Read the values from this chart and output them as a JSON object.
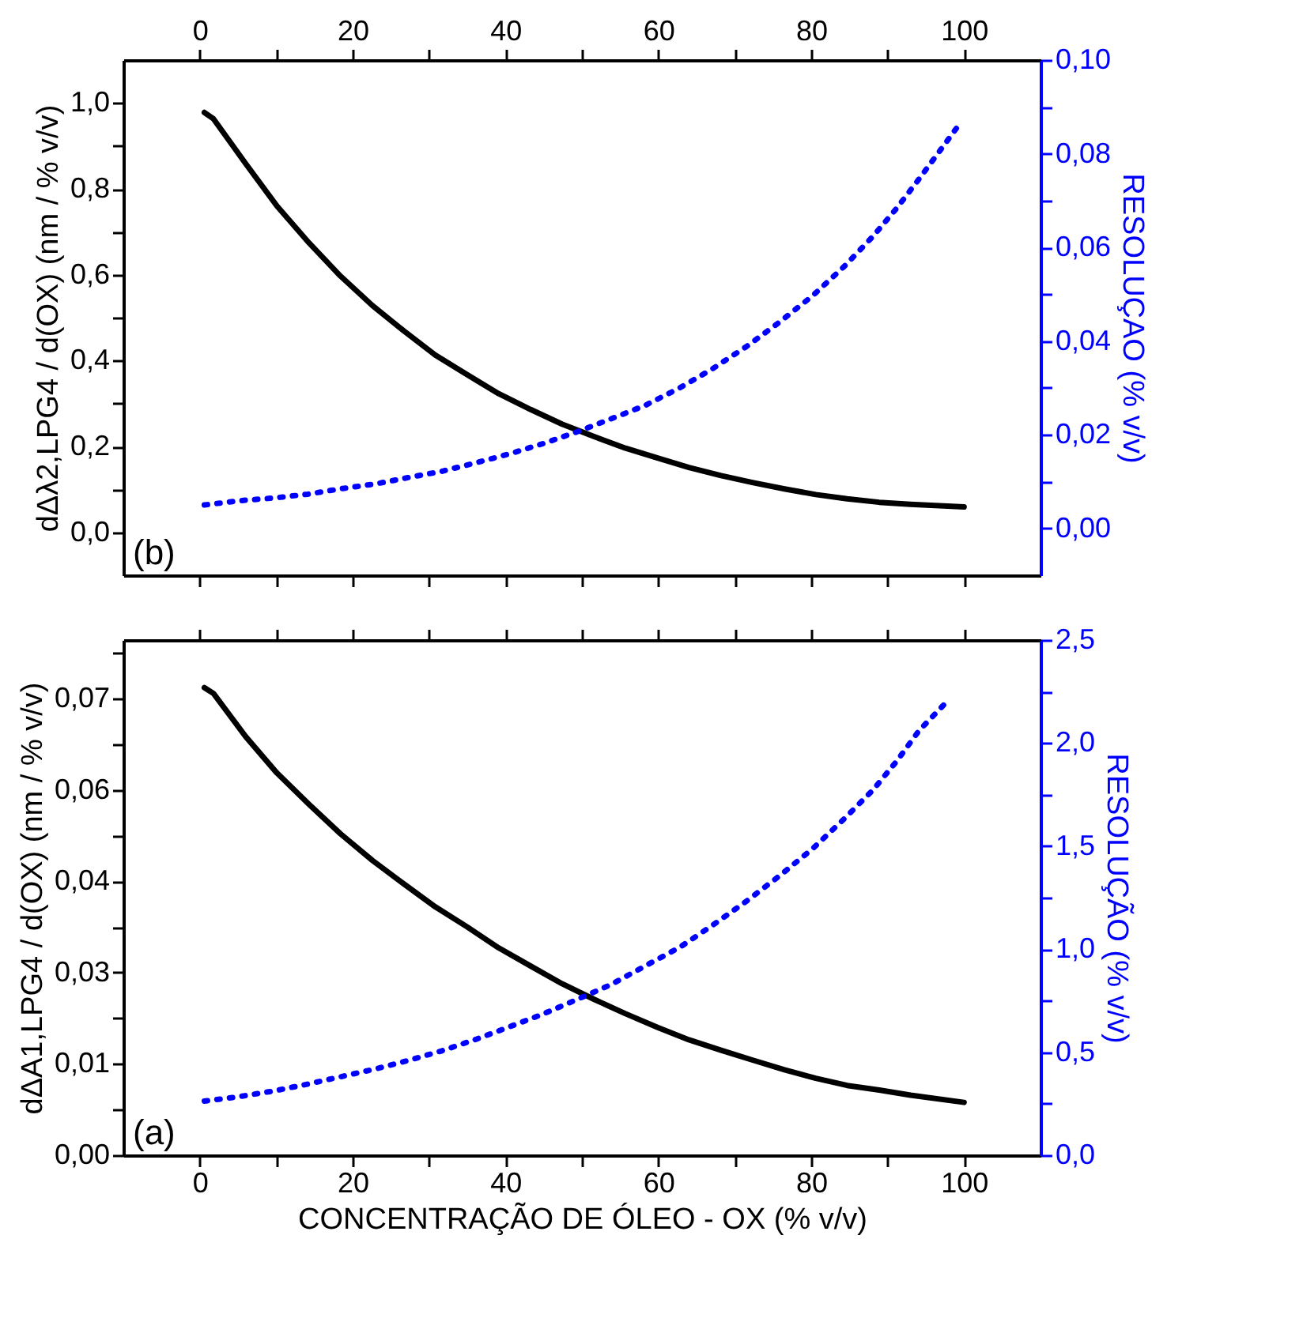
{
  "chart_data": [
    {
      "type": "line",
      "xlim": [
        -10,
        110
      ],
      "xticks": [
        0,
        {
          "value": 10,
          "label": null
        },
        20,
        {
          "value": 30,
          "label": null
        },
        40,
        {
          "value": 50,
          "label": null
        },
        60,
        {
          "value": 70,
          "label": null
        },
        80,
        {
          "value": 90,
          "label": null
        },
        100
      ],
      "tick_labels": "y",
      "x2lim": [
        -10,
        110
      ],
      "x2ticks": [
        0,
        {
          "value": 10,
          "label": null
        },
        20,
        {
          "value": 30,
          "label": null
        },
        40,
        {
          "value": 50,
          "label": null
        },
        60,
        {
          "value": 70,
          "label": null
        },
        80,
        {
          "value": 90,
          "label": null
        },
        100
      ],
      "ylim": [
        -0.1,
        1.1
      ],
      "yticks": [
        {
          "value": 0,
          "label": "0,0"
        },
        {
          "value": 0.1,
          "label": null
        },
        {
          "value": 0.2,
          "label": "0,2"
        },
        {
          "value": 0.3,
          "label": null
        },
        {
          "value": 0.4,
          "label": "0,4"
        },
        {
          "value": 0.5,
          "label": null
        },
        {
          "value": 0.6,
          "label": "0,6"
        },
        {
          "value": 0.7,
          "label": null
        },
        {
          "value": 0.8,
          "label": "0,8"
        },
        {
          "value": 0.9,
          "label": null
        },
        {
          "value": 1.0,
          "label": "1,0"
        }
      ],
      "y2lim": [
        -0.01,
        0.1
      ],
      "y2ticks": [
        {
          "value": 0,
          "label": "0,00"
        },
        {
          "value": 0.01,
          "label": null
        },
        {
          "value": 0.02,
          "label": "0,02"
        },
        {
          "value": 0.03,
          "label": null
        },
        {
          "value": 0.04,
          "label": "0,04"
        },
        {
          "value": 0.05,
          "label": null
        },
        {
          "value": 0.06,
          "label": "0,06"
        },
        {
          "value": 0.07,
          "label": null
        },
        {
          "value": 0.08,
          "label": "0,08"
        },
        {
          "value": 0.09,
          "label": null
        },
        {
          "value": 0.1,
          "label": "0,10"
        }
      ],
      "ylabel": "dΔλ2,LPG4 / d(OX) (nm / % v/v)",
      "y2label": "RESOLUÇAO (% v/v)",
      "grid": false,
      "annotations": [
        "(b)"
      ],
      "series": [
        {
          "color": "#000000",
          "line_style": "solid",
          "x": [
            0.6,
            1.8,
            6.0,
            10.1,
            14.3,
            18.4,
            22.6,
            26.7,
            30.8,
            35.0,
            39.1,
            43.3,
            47.4,
            51.6,
            55.7,
            59.9,
            64.0,
            68.2,
            72.3,
            76.5,
            80.6,
            84.7,
            88.9,
            93.0,
            100
          ],
          "values": [
            0.978,
            0.963,
            0.859,
            0.76,
            0.674,
            0.597,
            0.528,
            0.469,
            0.413,
            0.367,
            0.323,
            0.286,
            0.252,
            0.223,
            0.196,
            0.173,
            0.151,
            0.132,
            0.116,
            0.101,
            0.088,
            0.078,
            0.07,
            0.065,
            0.059
          ]
        },
        {
          "color": "#0000ff",
          "line_style": "dotted",
          "axis": "y2",
          "x": [
            0.6,
            5.1,
            9.7,
            14.1,
            18.6,
            23.0,
            27.4,
            31.7,
            36.1,
            40.5,
            44.9,
            49.5,
            53.8,
            58.2,
            62.8,
            67.1,
            71.5,
            75.9,
            80.2,
            84.3,
            88.1,
            91.2,
            94.1,
            97.0,
            99.7
          ],
          "values": [
            0.005,
            0.0059,
            0.0065,
            0.0073,
            0.0085,
            0.0095,
            0.0109,
            0.0122,
            0.014,
            0.0159,
            0.0181,
            0.0207,
            0.0234,
            0.0262,
            0.03,
            0.0341,
            0.0388,
            0.0441,
            0.0497,
            0.0559,
            0.0624,
            0.0684,
            0.0746,
            0.081,
            0.087
          ]
        }
      ]
    },
    {
      "type": "line",
      "xlim": [
        -10,
        110
      ],
      "xticks": [
        0,
        {
          "value": 10,
          "label": null
        },
        20,
        {
          "value": 30,
          "label": null
        },
        40,
        {
          "value": 50,
          "label": null
        },
        60,
        {
          "value": 70,
          "label": null
        },
        80,
        {
          "value": 90,
          "label": null
        },
        100
      ],
      "ylim": [
        0,
        0.079
      ],
      "yticks": [
        {
          "value": 0,
          "label": "0,00"
        },
        {
          "value": 0.007,
          "label": null
        },
        {
          "value": 0.014,
          "label": "0,01"
        },
        {
          "value": 0.021,
          "label": null
        },
        {
          "value": 0.028,
          "label": "0,03"
        },
        {
          "value": 0.035,
          "label": null
        },
        {
          "value": 0.042,
          "label": "0,04"
        },
        {
          "value": 0.049,
          "label": null
        },
        {
          "value": 0.056,
          "label": "0,06"
        },
        {
          "value": 0.063,
          "label": null
        },
        {
          "value": 0.07,
          "label": "0,07"
        },
        {
          "value": 0.077,
          "label": null
        }
      ],
      "y2lim": [
        0,
        2.5
      ],
      "y2ticks": [
        {
          "value": 0,
          "label": "0,0"
        },
        {
          "value": 0.25,
          "label": null
        },
        {
          "value": 0.5,
          "label": "0,5"
        },
        {
          "value": 0.75,
          "label": null
        },
        {
          "value": 1.0,
          "label": "1,0"
        },
        {
          "value": 1.25,
          "label": null
        },
        {
          "value": 1.5,
          "label": "1,5"
        },
        {
          "value": 1.75,
          "label": null
        },
        {
          "value": 2.0,
          "label": "2,0"
        },
        {
          "value": 2.25,
          "label": null
        },
        {
          "value": 2.5,
          "label": "2,5"
        }
      ],
      "xlabel": "CONCENTRAÇÃO DE ÓLEO - OX (% v/v)",
      "ylabel": "dΔA1,LPG4 / d(OX) (nm / % v/v)",
      "y2label": "RESOLUÇÃO (% v/v)",
      "grid": false,
      "annotations": [
        "(a)"
      ],
      "series": [
        {
          "color": "#000000",
          "line_style": "solid",
          "x": [
            0.6,
            1.8,
            6.0,
            10.1,
            14.3,
            18.4,
            22.6,
            26.7,
            30.8,
            35.0,
            39.1,
            43.3,
            47.4,
            51.6,
            55.7,
            59.9,
            64.0,
            68.2,
            72.3,
            76.5,
            80.6,
            84.7,
            88.9,
            93.0,
            100
          ],
          "values": [
            0.0717,
            0.0708,
            0.0642,
            0.0586,
            0.0538,
            0.0493,
            0.0452,
            0.0416,
            0.0381,
            0.035,
            0.0318,
            0.029,
            0.0263,
            0.0239,
            0.0217,
            0.0196,
            0.0177,
            0.0161,
            0.0146,
            0.0131,
            0.0118,
            0.0107,
            0.01,
            0.0092,
            0.0081
          ]
        },
        {
          "color": "#0000ff",
          "line_style": "dotted",
          "axis": "y2",
          "x": [
            0.6,
            5.1,
            9.7,
            14.1,
            18.6,
            23.0,
            27.4,
            31.7,
            36.1,
            40.5,
            44.9,
            49.5,
            53.8,
            58.2,
            62.8,
            67.1,
            71.5,
            75.9,
            80.2,
            84.3,
            88.1,
            91.2,
            94.1,
            97.8
          ],
          "values": [
            0.263,
            0.284,
            0.312,
            0.345,
            0.382,
            0.419,
            0.461,
            0.507,
            0.562,
            0.623,
            0.685,
            0.758,
            0.828,
            0.917,
            1.009,
            1.116,
            1.232,
            1.357,
            1.488,
            1.632,
            1.773,
            1.913,
            2.06,
            2.203
          ]
        }
      ]
    }
  ]
}
